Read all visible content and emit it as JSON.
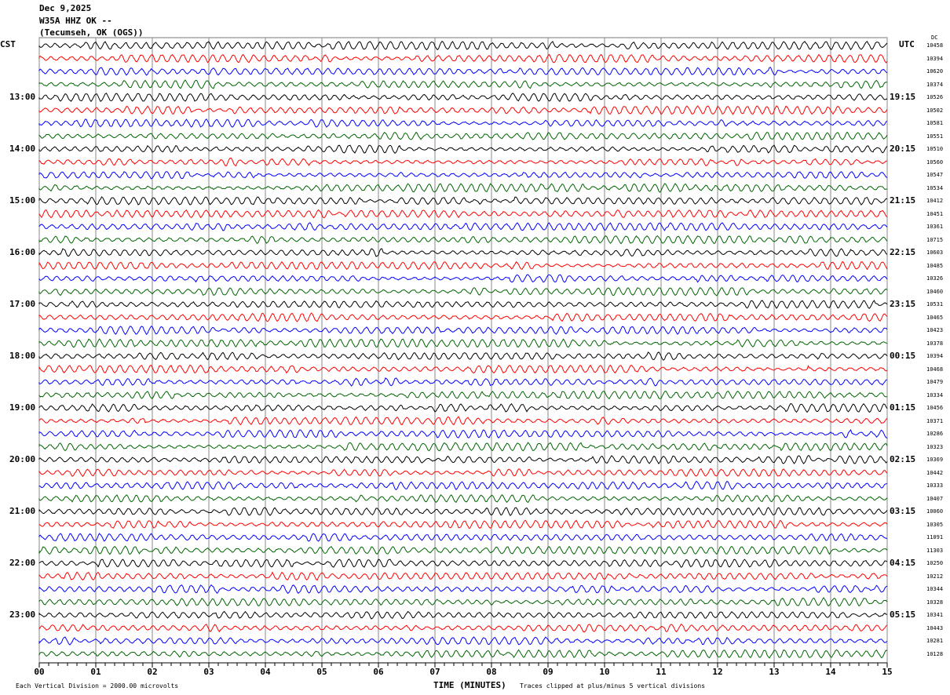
{
  "header": {
    "date": "Dec 9,2025",
    "station": "W35A HHZ OK --",
    "location": "(Tecumseh, OK (OGS))"
  },
  "chart_data": {
    "type": "line",
    "subtype": "helicorder",
    "xlabel": "TIME (MINUTES)",
    "xlim": [
      0,
      15
    ],
    "x_ticks": [
      "00",
      "01",
      "02",
      "03",
      "04",
      "05",
      "06",
      "07",
      "08",
      "09",
      "10",
      "11",
      "12",
      "13",
      "14",
      "15"
    ],
    "left_axis_title": "CST",
    "right_axis_title": "UTC",
    "dc_title": "DC",
    "left_labels": [
      "13:00",
      "14:00",
      "15:00",
      "16:00",
      "17:00",
      "18:00",
      "19:00",
      "20:00",
      "21:00",
      "22:00",
      "23:00"
    ],
    "right_labels": [
      "19:15",
      "20:15",
      "21:15",
      "22:15",
      "23:15",
      "00:15",
      "01:15",
      "02:15",
      "03:15",
      "04:15",
      "05:15"
    ],
    "dc_values": [
      "10458",
      "10394",
      "10620",
      "10374",
      "10526",
      "10502",
      "10581",
      "10551",
      "10510",
      "10560",
      "10547",
      "10534",
      "10412",
      "10451",
      "10361",
      "10715",
      "10603",
      "10485",
      "10326",
      "10460",
      "10531",
      "10465",
      "10423",
      "10378",
      "10394",
      "10468",
      "10479",
      "10334",
      "10456",
      "10371",
      "10286",
      "10323",
      "10369",
      "10442",
      "10333",
      "10407",
      "10060",
      "10305",
      "11091",
      "11303",
      "10250",
      "10212",
      "10344",
      "10328",
      "10341",
      "10443",
      "10281",
      "10128"
    ],
    "trace_colors": [
      "#000000",
      "#ff0000",
      "#0000ff",
      "#006400"
    ],
    "grid": true
  },
  "footer": {
    "scale": "Each Vertical Division = 2000.00 microvolts",
    "clip": "Traces clipped at plus/minus 5 vertical divisions"
  }
}
